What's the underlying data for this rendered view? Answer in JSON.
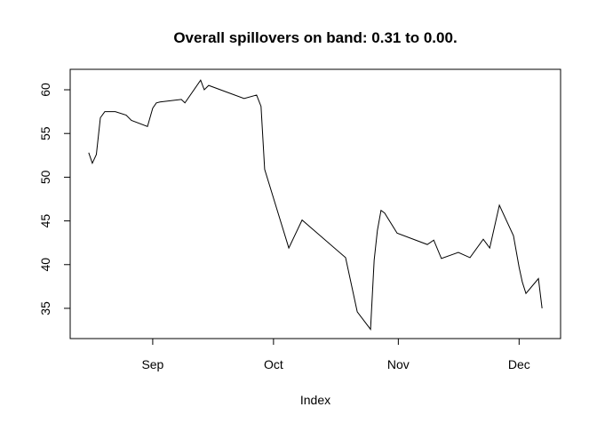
{
  "chart_data": {
    "type": "line",
    "title": "Overall spillovers on band: 0.31 to 0.00.",
    "xlabel": "Index",
    "x": [
      -15.9,
      -15,
      -14,
      -13,
      -11.9,
      -9.3,
      -6.6,
      -5.3,
      -1.3,
      0,
      0.9,
      1.8,
      7.1,
      8,
      11.9,
      12.8,
      13.9,
      22.7,
      25.8,
      26.9,
      27.8,
      33.8,
      37.1,
      47.9,
      50.8,
      54.1,
      55,
      55.8,
      56.7,
      57.6,
      60.7,
      68.2,
      69.8,
      71.7,
      75.9,
      78.8,
      82.1,
      83.7,
      86.1,
      89.6,
      91,
      91.8,
      92.7,
      95.8,
      96.7
    ],
    "values": [
      52.8,
      51.6,
      52.6,
      56.8,
      57.5,
      57.5,
      57.1,
      56.5,
      55.8,
      57.9,
      58.5,
      58.6,
      58.9,
      58.5,
      61.1,
      60,
      60.5,
      59,
      59.4,
      58.1,
      50.9,
      41.9,
      45.1,
      40.8,
      34.6,
      32.6,
      40.5,
      43.9,
      46.2,
      45.9,
      43.6,
      42.3,
      42.8,
      40.7,
      41.4,
      40.8,
      42.9,
      41.9,
      46.8,
      43.3,
      39.7,
      38,
      36.7,
      38.4,
      35
    ],
    "color": "#000000",
    "xlim": [
      -20.5,
      101.3
    ],
    "xticks": [
      {
        "value": 0,
        "label": "Sep"
      },
      {
        "value": 30,
        "label": "Oct"
      },
      {
        "value": 61,
        "label": "Nov"
      },
      {
        "value": 91,
        "label": "Dec"
      }
    ],
    "ylim": [
      31.54,
      62.34
    ],
    "yticks": [
      35,
      40,
      45,
      50,
      55,
      60
    ]
  }
}
